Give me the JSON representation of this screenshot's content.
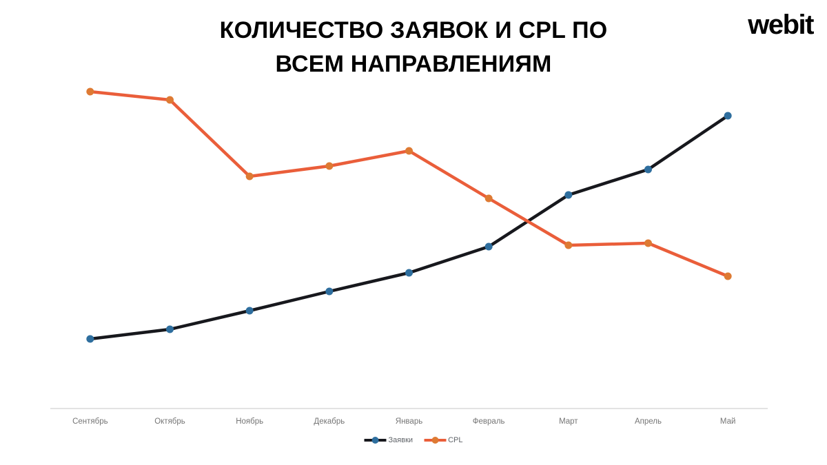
{
  "page": {
    "background_color": "#FFFFFF"
  },
  "header": {
    "title_lines": [
      "КОЛИЧЕСТВО ЗАЯВОК И CPL ПО",
      "ВСЕМ НАПРАВЛЕНИЯМ"
    ],
    "logo_text": "webit"
  },
  "chart_data": {
    "type": "line",
    "title": "КОЛИЧЕСТВО ЗАЯВОК И CPL ПО ВСЕМ НАПРАВЛЕНИЯМ",
    "categories": [
      "Сентябрь",
      "Октябрь",
      "Ноябрь",
      "Декабрь",
      "Январь",
      "Февраль",
      "Март",
      "Апрель",
      "Май"
    ],
    "series": [
      {
        "name": "Заявки",
        "values": [
          101,
          115,
          142,
          170,
          197,
          235,
          310,
          347,
          425
        ],
        "line_color": "#17181D",
        "point_color": "#2E6E9E"
      },
      {
        "name": "CPL",
        "values": [
          460,
          448,
          337,
          352,
          374,
          305,
          237,
          240,
          192
        ],
        "line_color": "#EA5E3A",
        "point_color": "#DE7A33"
      }
    ],
    "xlabel": "",
    "ylabel": "",
    "ylim": [
      0,
      520
    ],
    "y_axis_visible": false,
    "gridlines": false,
    "legend_position": "bottom",
    "axis_line_color": "#E3E3E3",
    "axis_label_color": "#757575",
    "legend_label_color": "#5F6368"
  }
}
